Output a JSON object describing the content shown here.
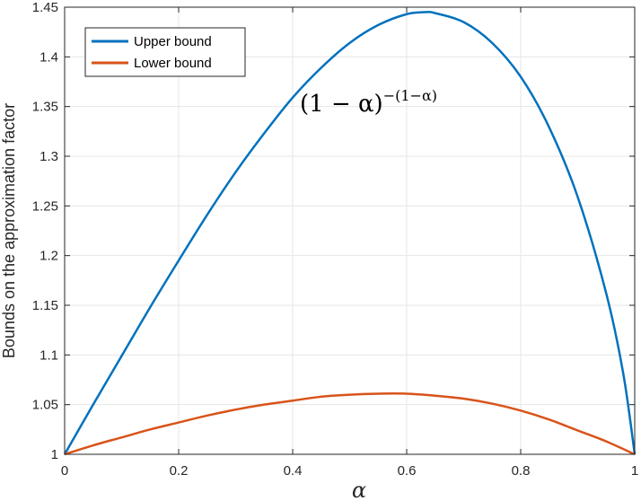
{
  "chart_data": {
    "type": "line",
    "xlabel": "α",
    "ylabel": "Bounds on the approximation factor",
    "xlim": [
      0,
      1
    ],
    "ylim": [
      1,
      1.45
    ],
    "xticks": [
      "0",
      "0.2",
      "0.4",
      "0.6",
      "0.8",
      "1"
    ],
    "yticks": [
      "1",
      "1.05",
      "1.1",
      "1.15",
      "1.2",
      "1.25",
      "1.3",
      "1.35",
      "1.4",
      "1.45"
    ],
    "grid": true,
    "legend_position": "top-left",
    "annotation": {
      "base": "(1 − α)",
      "exponent": "−(1−α)"
    },
    "series": [
      {
        "name": "Upper bound",
        "color": "#0072BD",
        "x": [
          0,
          0.05,
          0.1,
          0.15,
          0.2,
          0.25,
          0.3,
          0.35,
          0.4,
          0.45,
          0.5,
          0.55,
          0.6,
          0.632,
          0.65,
          0.7,
          0.75,
          0.8,
          0.85,
          0.9,
          0.95,
          0.98,
          1
        ],
        "y": [
          1.0,
          1.05,
          1.099,
          1.148,
          1.195,
          1.241,
          1.284,
          1.323,
          1.359,
          1.389,
          1.414,
          1.432,
          1.443,
          1.445,
          1.444,
          1.435,
          1.414,
          1.38,
          1.329,
          1.259,
          1.162,
          1.081,
          1.0
        ]
      },
      {
        "name": "Lower bound",
        "color": "#D95319",
        "x": [
          0,
          0.05,
          0.1,
          0.15,
          0.2,
          0.25,
          0.3,
          0.35,
          0.4,
          0.45,
          0.5,
          0.55,
          0.6,
          0.65,
          0.7,
          0.75,
          0.8,
          0.85,
          0.9,
          0.95,
          1
        ],
        "y": [
          1.0,
          1.009,
          1.017,
          1.025,
          1.032,
          1.039,
          1.045,
          1.05,
          1.054,
          1.058,
          1.06,
          1.061,
          1.061,
          1.059,
          1.056,
          1.051,
          1.044,
          1.035,
          1.024,
          1.013,
          1.0
        ]
      }
    ]
  }
}
